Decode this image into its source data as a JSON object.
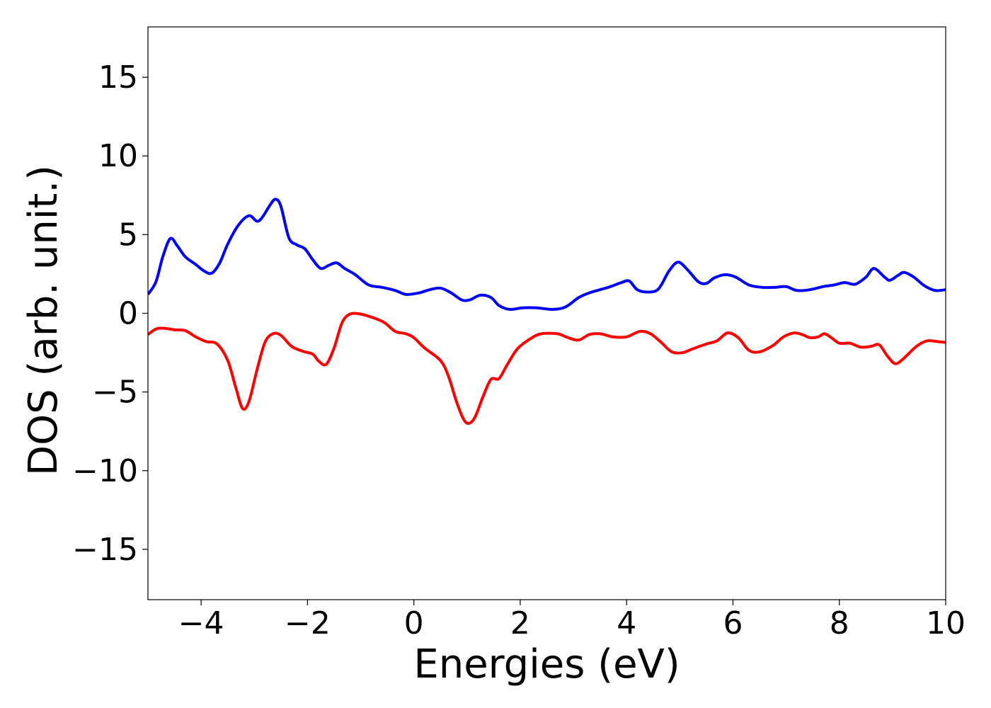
{
  "chart_data": {
    "type": "line",
    "title": "",
    "xlabel": "Energies (eV)",
    "ylabel": "DOS (arb. unit.)",
    "xlim": [
      -5,
      10
    ],
    "ylim": [
      -18.2,
      18.2
    ],
    "grid": false,
    "legend": "none",
    "x_ticks": [
      {
        "value": -4,
        "label": "−4"
      },
      {
        "value": -2,
        "label": "−2"
      },
      {
        "value": 0,
        "label": "0"
      },
      {
        "value": 2,
        "label": "2"
      },
      {
        "value": 4,
        "label": "4"
      },
      {
        "value": 6,
        "label": "6"
      },
      {
        "value": 8,
        "label": "8"
      },
      {
        "value": 10,
        "label": "10"
      }
    ],
    "y_ticks": [
      {
        "value": 15,
        "label": "15"
      },
      {
        "value": 10,
        "label": "10"
      },
      {
        "value": 5,
        "label": "5"
      },
      {
        "value": 0,
        "label": "0"
      },
      {
        "value": -5,
        "label": "−5"
      },
      {
        "value": -10,
        "label": "−10"
      },
      {
        "value": -15,
        "label": "−15"
      }
    ],
    "series": [
      {
        "color": "#0000ff",
        "points": [
          [
            -5.0,
            1.2
          ],
          [
            -4.85,
            2.0
          ],
          [
            -4.72,
            3.6
          ],
          [
            -4.58,
            4.75
          ],
          [
            -4.45,
            4.3
          ],
          [
            -4.3,
            3.6
          ],
          [
            -4.1,
            3.1
          ],
          [
            -3.95,
            2.7
          ],
          [
            -3.8,
            2.55
          ],
          [
            -3.65,
            3.2
          ],
          [
            -3.5,
            4.4
          ],
          [
            -3.3,
            5.6
          ],
          [
            -3.1,
            6.2
          ],
          [
            -2.95,
            5.85
          ],
          [
            -2.85,
            6.1
          ],
          [
            -2.7,
            6.9
          ],
          [
            -2.6,
            7.25
          ],
          [
            -2.5,
            6.8
          ],
          [
            -2.35,
            4.8
          ],
          [
            -2.2,
            4.35
          ],
          [
            -2.05,
            4.1
          ],
          [
            -1.9,
            3.4
          ],
          [
            -1.75,
            2.85
          ],
          [
            -1.6,
            3.05
          ],
          [
            -1.45,
            3.2
          ],
          [
            -1.3,
            2.85
          ],
          [
            -1.1,
            2.45
          ],
          [
            -0.85,
            1.8
          ],
          [
            -0.6,
            1.65
          ],
          [
            -0.35,
            1.45
          ],
          [
            -0.15,
            1.2
          ],
          [
            0.1,
            1.3
          ],
          [
            0.3,
            1.5
          ],
          [
            0.5,
            1.6
          ],
          [
            0.7,
            1.3
          ],
          [
            0.9,
            0.85
          ],
          [
            1.05,
            0.85
          ],
          [
            1.25,
            1.15
          ],
          [
            1.45,
            1.0
          ],
          [
            1.6,
            0.5
          ],
          [
            1.8,
            0.25
          ],
          [
            2.05,
            0.35
          ],
          [
            2.3,
            0.35
          ],
          [
            2.6,
            0.25
          ],
          [
            2.85,
            0.4
          ],
          [
            3.1,
            1.0
          ],
          [
            3.3,
            1.3
          ],
          [
            3.5,
            1.5
          ],
          [
            3.7,
            1.7
          ],
          [
            3.9,
            1.95
          ],
          [
            4.05,
            2.05
          ],
          [
            4.2,
            1.5
          ],
          [
            4.4,
            1.35
          ],
          [
            4.6,
            1.55
          ],
          [
            4.8,
            2.7
          ],
          [
            4.97,
            3.25
          ],
          [
            5.15,
            2.75
          ],
          [
            5.35,
            2.0
          ],
          [
            5.5,
            1.9
          ],
          [
            5.65,
            2.25
          ],
          [
            5.85,
            2.45
          ],
          [
            6.05,
            2.3
          ],
          [
            6.3,
            1.8
          ],
          [
            6.55,
            1.65
          ],
          [
            6.8,
            1.65
          ],
          [
            7.0,
            1.7
          ],
          [
            7.2,
            1.45
          ],
          [
            7.45,
            1.5
          ],
          [
            7.7,
            1.7
          ],
          [
            7.9,
            1.8
          ],
          [
            8.1,
            1.95
          ],
          [
            8.3,
            1.85
          ],
          [
            8.5,
            2.3
          ],
          [
            8.65,
            2.85
          ],
          [
            8.85,
            2.3
          ],
          [
            8.95,
            2.1
          ],
          [
            9.1,
            2.4
          ],
          [
            9.22,
            2.6
          ],
          [
            9.4,
            2.3
          ],
          [
            9.6,
            1.75
          ],
          [
            9.8,
            1.45
          ],
          [
            10.0,
            1.5
          ]
        ]
      },
      {
        "color": "#ff0000",
        "points": [
          [
            -5.0,
            -1.35
          ],
          [
            -4.85,
            -1.0
          ],
          [
            -4.7,
            -0.95
          ],
          [
            -4.5,
            -1.05
          ],
          [
            -4.3,
            -1.1
          ],
          [
            -4.1,
            -1.5
          ],
          [
            -3.9,
            -1.8
          ],
          [
            -3.7,
            -1.95
          ],
          [
            -3.5,
            -3.0
          ],
          [
            -3.35,
            -4.7
          ],
          [
            -3.22,
            -6.05
          ],
          [
            -3.1,
            -5.6
          ],
          [
            -2.95,
            -3.6
          ],
          [
            -2.8,
            -1.85
          ],
          [
            -2.65,
            -1.3
          ],
          [
            -2.5,
            -1.4
          ],
          [
            -2.3,
            -2.1
          ],
          [
            -2.1,
            -2.4
          ],
          [
            -1.9,
            -2.6
          ],
          [
            -1.8,
            -3.0
          ],
          [
            -1.65,
            -3.25
          ],
          [
            -1.5,
            -2.2
          ],
          [
            -1.35,
            -0.6
          ],
          [
            -1.2,
            -0.05
          ],
          [
            -1.0,
            -0.05
          ],
          [
            -0.75,
            -0.3
          ],
          [
            -0.55,
            -0.6
          ],
          [
            -0.35,
            -1.15
          ],
          [
            -0.15,
            -1.3
          ],
          [
            0.0,
            -1.55
          ],
          [
            0.2,
            -2.2
          ],
          [
            0.5,
            -3.0
          ],
          [
            0.65,
            -4.0
          ],
          [
            0.8,
            -5.6
          ],
          [
            0.93,
            -6.7
          ],
          [
            1.03,
            -7.0
          ],
          [
            1.15,
            -6.6
          ],
          [
            1.3,
            -5.3
          ],
          [
            1.45,
            -4.2
          ],
          [
            1.6,
            -4.15
          ],
          [
            1.75,
            -3.3
          ],
          [
            1.95,
            -2.25
          ],
          [
            2.2,
            -1.6
          ],
          [
            2.4,
            -1.3
          ],
          [
            2.7,
            -1.3
          ],
          [
            2.9,
            -1.55
          ],
          [
            3.1,
            -1.7
          ],
          [
            3.3,
            -1.35
          ],
          [
            3.5,
            -1.3
          ],
          [
            3.75,
            -1.5
          ],
          [
            4.0,
            -1.5
          ],
          [
            4.25,
            -1.15
          ],
          [
            4.45,
            -1.3
          ],
          [
            4.65,
            -1.85
          ],
          [
            4.85,
            -2.45
          ],
          [
            5.05,
            -2.5
          ],
          [
            5.25,
            -2.25
          ],
          [
            5.5,
            -1.95
          ],
          [
            5.7,
            -1.75
          ],
          [
            5.9,
            -1.25
          ],
          [
            6.1,
            -1.55
          ],
          [
            6.3,
            -2.35
          ],
          [
            6.5,
            -2.45
          ],
          [
            6.75,
            -2.05
          ],
          [
            6.95,
            -1.5
          ],
          [
            7.15,
            -1.25
          ],
          [
            7.3,
            -1.35
          ],
          [
            7.45,
            -1.55
          ],
          [
            7.6,
            -1.5
          ],
          [
            7.72,
            -1.3
          ],
          [
            7.85,
            -1.55
          ],
          [
            8.0,
            -1.9
          ],
          [
            8.2,
            -1.9
          ],
          [
            8.4,
            -2.15
          ],
          [
            8.6,
            -2.1
          ],
          [
            8.75,
            -2.0
          ],
          [
            8.9,
            -2.7
          ],
          [
            9.05,
            -3.2
          ],
          [
            9.2,
            -2.9
          ],
          [
            9.45,
            -2.1
          ],
          [
            9.65,
            -1.75
          ],
          [
            9.85,
            -1.8
          ],
          [
            10.0,
            -1.85
          ]
        ]
      }
    ]
  }
}
